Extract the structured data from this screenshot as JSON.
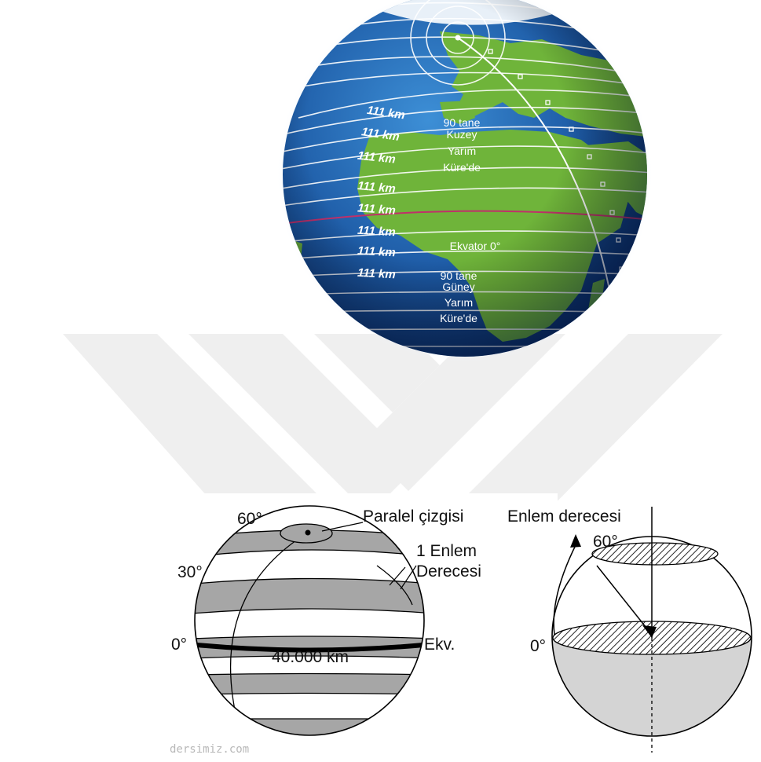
{
  "globe": {
    "distance_labels": [
      "111 km",
      "111 km",
      "111 km",
      "111 km",
      "111 km",
      "111 km",
      "111 km",
      "111 km"
    ],
    "north_text": [
      "90 tane",
      "Kuzey",
      "Yarım",
      "Küre'de"
    ],
    "equator_text": "Ekvator 0°",
    "south_text": [
      "90 tane",
      "Güney",
      "Yarım",
      "Küre'de"
    ]
  },
  "left_diagram": {
    "deg_60": "60°",
    "deg_30": "30°",
    "deg_0": "0°",
    "paralel_label": "Paralel çizgisi",
    "enlem_label_line1": "1 Enlem",
    "enlem_label_line2": "Derecesi",
    "equator_label": "Ekv.",
    "circumference": "40.000 km"
  },
  "right_diagram": {
    "title": "Enlem derecesi",
    "deg_60": "60°",
    "deg_0": "0°"
  },
  "credit": "dersimiz.com",
  "colors": {
    "ocean": "#1e5fa8",
    "land": "#6fb43a",
    "band_gray": "#a6a6a6",
    "watermark": "#efefef"
  }
}
